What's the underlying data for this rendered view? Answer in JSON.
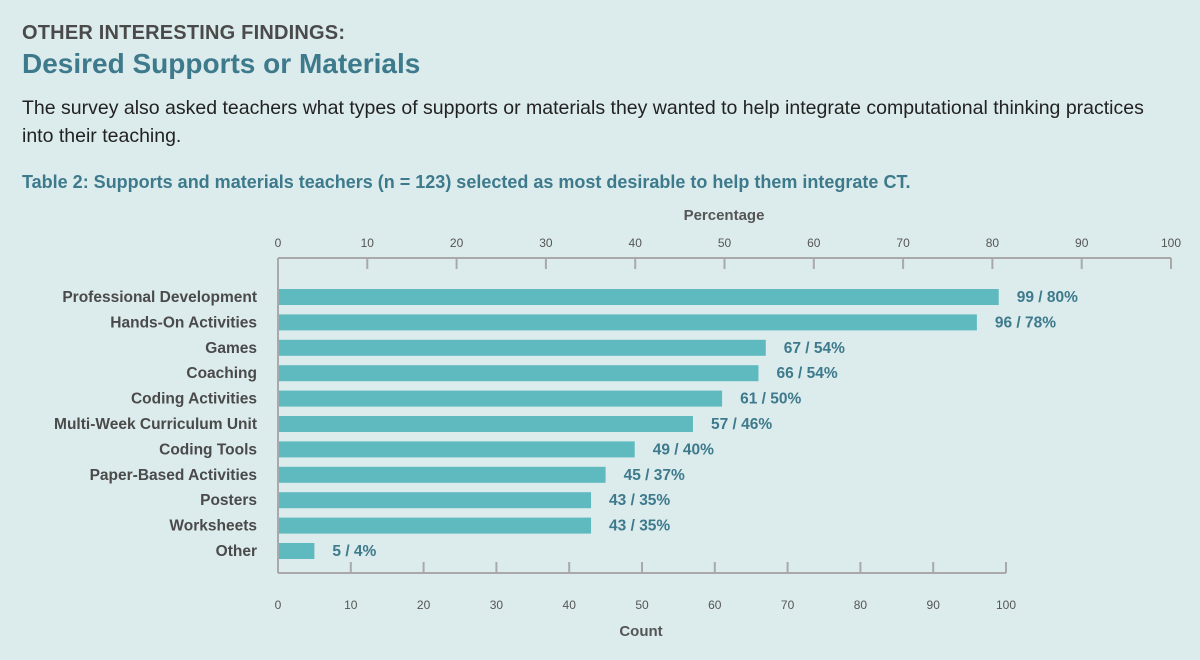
{
  "header": {
    "eyebrow": "OTHER INTERESTING FINDINGS:",
    "title": "Desired Supports or Materials",
    "intro": "The survey also asked teachers what types of supports or materials they wanted to help integrate computational thinking practices into their teaching.",
    "caption": "Table 2: Supports and materials teachers (n = 123) selected as most desirable to help them integrate CT."
  },
  "chart_data": {
    "type": "bar",
    "orientation": "horizontal",
    "categories": [
      "Professional Development",
      "Hands-On Activities",
      "Games",
      "Coaching",
      "Coding Activities",
      "Multi-Week Curriculum Unit",
      "Coding Tools",
      "Paper-Based Activities",
      "Posters",
      "Worksheets",
      "Other"
    ],
    "values": [
      99,
      96,
      67,
      66,
      61,
      57,
      49,
      45,
      43,
      43,
      5
    ],
    "data_labels": [
      "99 / 80%",
      "96 / 78%",
      "67 / 54%",
      "66 / 54%",
      "61 / 50%",
      "57 / 46%",
      "49 / 40%",
      "45 / 37%",
      "43 / 35%",
      "43 / 35%",
      "5 / 4%"
    ],
    "xlabel": "Count",
    "xlim": [
      0,
      100
    ],
    "xticks": [
      "0",
      "10",
      "20",
      "30",
      "40",
      "50",
      "60",
      "70",
      "80",
      "90",
      "100"
    ],
    "secondary_xlabel": "Percentage",
    "secondary_xlim": [
      0,
      100
    ],
    "secondary_xticks": [
      "0",
      "10",
      "20",
      "30",
      "40",
      "50",
      "60",
      "70",
      "80",
      "90",
      "100"
    ],
    "bar_color": "#5fbabf",
    "label_color": "#3d7a8c",
    "category_color": "#4a4a4a",
    "axis_color": "#a9a9a9",
    "grid": false
  }
}
